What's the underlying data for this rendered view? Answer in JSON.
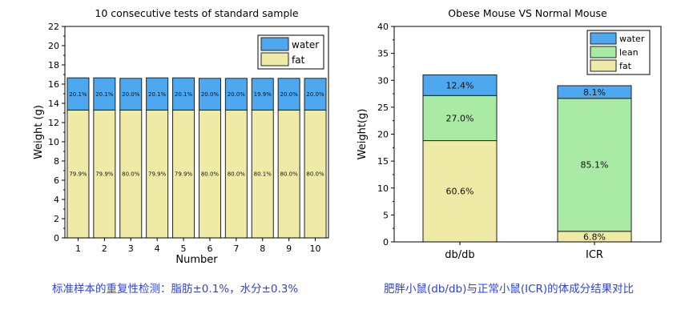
{
  "chart_data": [
    {
      "type": "bar",
      "stacked": true,
      "title": "10 consecutive tests of standard sample",
      "xlabel": "Number",
      "ylabel": "Weight (g)",
      "ylim": [
        0,
        22
      ],
      "yticks": [
        0,
        2,
        4,
        6,
        8,
        10,
        12,
        14,
        16,
        18,
        20,
        22
      ],
      "categories": [
        "1",
        "2",
        "3",
        "4",
        "5",
        "6",
        "7",
        "8",
        "9",
        "10"
      ],
      "series": [
        {
          "name": "fat",
          "color": "#efeba6",
          "values": [
            13.3,
            13.3,
            13.3,
            13.3,
            13.3,
            13.3,
            13.3,
            13.3,
            13.3,
            13.3
          ],
          "labels": [
            "79.9%",
            "79.9%",
            "80.0%",
            "79.9%",
            "79.9%",
            "80.0%",
            "80.0%",
            "80.1%",
            "80.0%",
            "80.0%"
          ]
        },
        {
          "name": "water",
          "color": "#4ea8ef",
          "values": [
            3.35,
            3.35,
            3.3,
            3.35,
            3.35,
            3.3,
            3.3,
            3.3,
            3.3,
            3.3
          ],
          "labels": [
            "20.1%",
            "20.1%",
            "20.0%",
            "20.1%",
            "20.1%",
            "20.0%",
            "20.0%",
            "19.9%",
            "20.0%",
            "20.0%"
          ]
        }
      ],
      "legend": {
        "position": "top-right",
        "order": [
          "water",
          "fat"
        ]
      },
      "grid": false
    },
    {
      "type": "bar",
      "stacked": true,
      "title": "Obese Mouse VS Normal Mouse",
      "xlabel": "",
      "ylabel": "Weight(g)",
      "ylim": [
        0,
        40
      ],
      "yticks": [
        0,
        5,
        10,
        15,
        20,
        25,
        30,
        35,
        40
      ],
      "categories": [
        "db/db",
        "ICR"
      ],
      "series": [
        {
          "name": "fat",
          "color": "#efeba6",
          "values": [
            18.8,
            1.97
          ],
          "labels": [
            "60.6%",
            "6.8%"
          ]
        },
        {
          "name": "lean",
          "color": "#a9eaa4",
          "values": [
            8.37,
            24.68
          ],
          "labels": [
            "27.0%",
            "85.1%"
          ]
        },
        {
          "name": "water",
          "color": "#4ea8ef",
          "values": [
            3.83,
            2.35
          ],
          "labels": [
            "12.4%",
            "8.1%"
          ]
        }
      ],
      "legend": {
        "position": "top-right",
        "order": [
          "water",
          "lean",
          "fat"
        ]
      },
      "grid": false
    }
  ],
  "captions": {
    "left": "标准样本的重复性检测：脂肪±0.1%，水分±0.3%",
    "right": "肥胖小鼠(db/db)与正常小鼠(ICR)的体成分结果对比"
  }
}
